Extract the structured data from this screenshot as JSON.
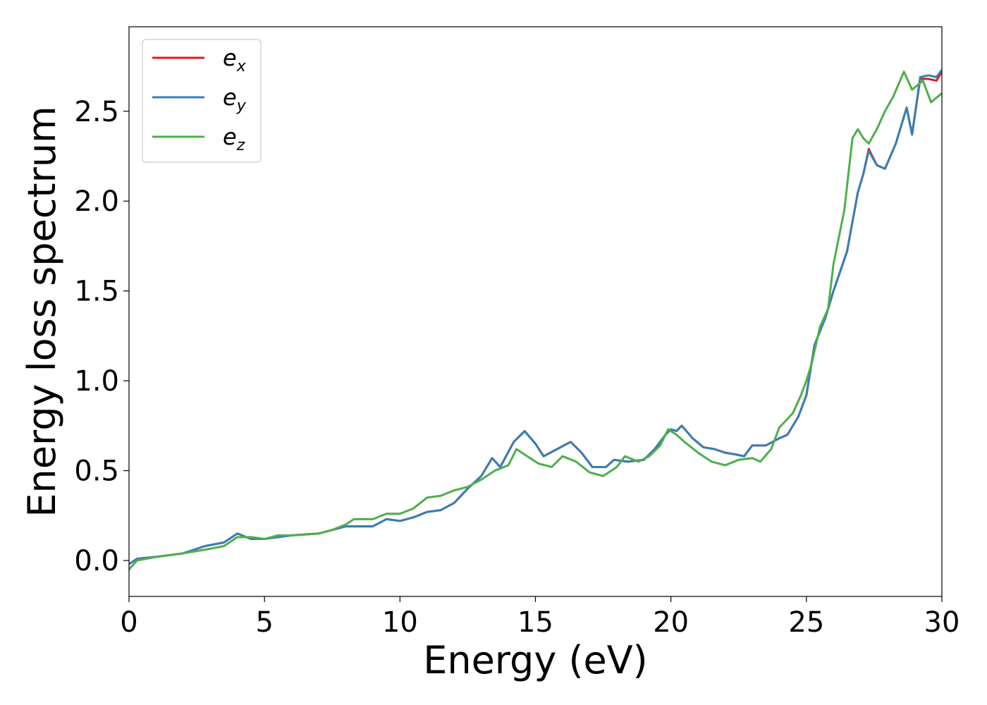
{
  "chart_data": {
    "type": "line",
    "title": "",
    "xlabel": "Energy (eV)",
    "ylabel": "Energy loss spectrum",
    "xlim": [
      0,
      30
    ],
    "ylim": [
      -0.2,
      2.97
    ],
    "xticks": [
      0,
      5,
      10,
      15,
      20,
      25,
      30
    ],
    "yticks": [
      0.0,
      0.5,
      1.0,
      1.5,
      2.0,
      2.5
    ],
    "xtick_labels": [
      "0",
      "5",
      "10",
      "15",
      "20",
      "25",
      "30"
    ],
    "ytick_labels": [
      "0.0",
      "0.5",
      "1.0",
      "1.5",
      "2.0",
      "2.5"
    ],
    "grid": false,
    "legend_position": "top-left",
    "series": [
      {
        "name": "e",
        "subscript": "x",
        "color": "#e41a1c",
        "points": [
          [
            0,
            -0.02
          ],
          [
            0.3,
            0.01
          ],
          [
            1,
            0.02
          ],
          [
            2,
            0.04
          ],
          [
            2.8,
            0.08
          ],
          [
            3.5,
            0.1
          ],
          [
            4,
            0.15
          ],
          [
            4.5,
            0.12
          ],
          [
            5,
            0.12
          ],
          [
            5.5,
            0.13
          ],
          [
            6,
            0.14
          ],
          [
            7,
            0.15
          ],
          [
            7.5,
            0.17
          ],
          [
            8,
            0.19
          ],
          [
            8.5,
            0.19
          ],
          [
            9,
            0.19
          ],
          [
            9.5,
            0.23
          ],
          [
            10,
            0.22
          ],
          [
            10.5,
            0.24
          ],
          [
            11,
            0.27
          ],
          [
            11.5,
            0.28
          ],
          [
            12,
            0.32
          ],
          [
            12.5,
            0.4
          ],
          [
            13,
            0.47
          ],
          [
            13.4,
            0.57
          ],
          [
            13.7,
            0.52
          ],
          [
            14.2,
            0.66
          ],
          [
            14.6,
            0.72
          ],
          [
            15,
            0.65
          ],
          [
            15.3,
            0.58
          ],
          [
            15.8,
            0.62
          ],
          [
            16.3,
            0.66
          ],
          [
            16.7,
            0.6
          ],
          [
            17.1,
            0.52
          ],
          [
            17.6,
            0.52
          ],
          [
            17.9,
            0.56
          ],
          [
            18.4,
            0.55
          ],
          [
            19,
            0.56
          ],
          [
            19.4,
            0.62
          ],
          [
            19.8,
            0.7
          ],
          [
            20,
            0.73
          ],
          [
            20.2,
            0.72
          ],
          [
            20.4,
            0.75
          ],
          [
            20.8,
            0.68
          ],
          [
            21.2,
            0.63
          ],
          [
            21.6,
            0.62
          ],
          [
            22,
            0.6
          ],
          [
            22.4,
            0.59
          ],
          [
            22.7,
            0.58
          ],
          [
            23,
            0.64
          ],
          [
            23.5,
            0.64
          ],
          [
            24,
            0.68
          ],
          [
            24.3,
            0.7
          ],
          [
            24.7,
            0.8
          ],
          [
            25,
            0.92
          ],
          [
            25.3,
            1.2
          ],
          [
            25.7,
            1.35
          ],
          [
            26,
            1.5
          ],
          [
            26.5,
            1.72
          ],
          [
            26.9,
            2.05
          ],
          [
            27.1,
            2.15
          ],
          [
            27.3,
            2.29
          ],
          [
            27.6,
            2.2
          ],
          [
            27.9,
            2.18
          ],
          [
            28.3,
            2.32
          ],
          [
            28.7,
            2.52
          ],
          [
            28.9,
            2.37
          ],
          [
            29.2,
            2.68
          ],
          [
            29.5,
            2.68
          ],
          [
            29.8,
            2.67
          ],
          [
            30,
            2.72
          ]
        ]
      },
      {
        "name": "e",
        "subscript": "y",
        "color": "#377eb8",
        "points": [
          [
            0,
            -0.02
          ],
          [
            0.3,
            0.01
          ],
          [
            1,
            0.02
          ],
          [
            2,
            0.04
          ],
          [
            2.8,
            0.08
          ],
          [
            3.5,
            0.1
          ],
          [
            4,
            0.15
          ],
          [
            4.5,
            0.12
          ],
          [
            5,
            0.12
          ],
          [
            5.5,
            0.13
          ],
          [
            6,
            0.14
          ],
          [
            7,
            0.15
          ],
          [
            7.5,
            0.17
          ],
          [
            8,
            0.19
          ],
          [
            8.5,
            0.19
          ],
          [
            9,
            0.19
          ],
          [
            9.5,
            0.23
          ],
          [
            10,
            0.22
          ],
          [
            10.5,
            0.24
          ],
          [
            11,
            0.27
          ],
          [
            11.5,
            0.28
          ],
          [
            12,
            0.32
          ],
          [
            12.5,
            0.4
          ],
          [
            13,
            0.47
          ],
          [
            13.4,
            0.57
          ],
          [
            13.7,
            0.52
          ],
          [
            14.2,
            0.66
          ],
          [
            14.6,
            0.72
          ],
          [
            15,
            0.65
          ],
          [
            15.3,
            0.58
          ],
          [
            15.8,
            0.62
          ],
          [
            16.3,
            0.66
          ],
          [
            16.7,
            0.6
          ],
          [
            17.1,
            0.52
          ],
          [
            17.6,
            0.52
          ],
          [
            17.9,
            0.56
          ],
          [
            18.4,
            0.55
          ],
          [
            19,
            0.56
          ],
          [
            19.4,
            0.62
          ],
          [
            19.8,
            0.7
          ],
          [
            20,
            0.73
          ],
          [
            20.2,
            0.72
          ],
          [
            20.4,
            0.75
          ],
          [
            20.8,
            0.68
          ],
          [
            21.2,
            0.63
          ],
          [
            21.6,
            0.62
          ],
          [
            22,
            0.6
          ],
          [
            22.4,
            0.59
          ],
          [
            22.7,
            0.58
          ],
          [
            23,
            0.64
          ],
          [
            23.5,
            0.64
          ],
          [
            24,
            0.68
          ],
          [
            24.3,
            0.7
          ],
          [
            24.7,
            0.8
          ],
          [
            25,
            0.92
          ],
          [
            25.3,
            1.2
          ],
          [
            25.7,
            1.35
          ],
          [
            26,
            1.5
          ],
          [
            26.5,
            1.72
          ],
          [
            26.9,
            2.05
          ],
          [
            27.1,
            2.15
          ],
          [
            27.3,
            2.28
          ],
          [
            27.6,
            2.2
          ],
          [
            27.9,
            2.18
          ],
          [
            28.3,
            2.32
          ],
          [
            28.7,
            2.52
          ],
          [
            28.9,
            2.37
          ],
          [
            29.2,
            2.69
          ],
          [
            29.5,
            2.7
          ],
          [
            29.8,
            2.69
          ],
          [
            30,
            2.73
          ]
        ]
      },
      {
        "name": "e",
        "subscript": "z",
        "color": "#4daf4a",
        "points": [
          [
            0,
            -0.05
          ],
          [
            0.3,
            0.0
          ],
          [
            1,
            0.02
          ],
          [
            1.5,
            0.03
          ],
          [
            2,
            0.04
          ],
          [
            2.8,
            0.06
          ],
          [
            3.5,
            0.08
          ],
          [
            4,
            0.13
          ],
          [
            4.5,
            0.13
          ],
          [
            5,
            0.12
          ],
          [
            5.5,
            0.14
          ],
          [
            6,
            0.14
          ],
          [
            7,
            0.15
          ],
          [
            7.5,
            0.17
          ],
          [
            8,
            0.2
          ],
          [
            8.3,
            0.23
          ],
          [
            9,
            0.23
          ],
          [
            9.5,
            0.26
          ],
          [
            10,
            0.26
          ],
          [
            10.5,
            0.29
          ],
          [
            11,
            0.35
          ],
          [
            11.5,
            0.36
          ],
          [
            12,
            0.39
          ],
          [
            12.5,
            0.41
          ],
          [
            13,
            0.45
          ],
          [
            13.5,
            0.5
          ],
          [
            14,
            0.53
          ],
          [
            14.3,
            0.62
          ],
          [
            14.7,
            0.58
          ],
          [
            15.1,
            0.54
          ],
          [
            15.6,
            0.52
          ],
          [
            16,
            0.58
          ],
          [
            16.5,
            0.55
          ],
          [
            17,
            0.49
          ],
          [
            17.5,
            0.47
          ],
          [
            18,
            0.52
          ],
          [
            18.3,
            0.58
          ],
          [
            18.8,
            0.55
          ],
          [
            19.2,
            0.58
          ],
          [
            19.6,
            0.64
          ],
          [
            19.9,
            0.73
          ],
          [
            20.2,
            0.7
          ],
          [
            20.5,
            0.66
          ],
          [
            21,
            0.6
          ],
          [
            21.5,
            0.55
          ],
          [
            22,
            0.53
          ],
          [
            22.5,
            0.56
          ],
          [
            23,
            0.57
          ],
          [
            23.3,
            0.55
          ],
          [
            23.7,
            0.62
          ],
          [
            24,
            0.74
          ],
          [
            24.5,
            0.82
          ],
          [
            24.8,
            0.92
          ],
          [
            25,
            1.0
          ],
          [
            25.2,
            1.1
          ],
          [
            25.5,
            1.3
          ],
          [
            25.8,
            1.4
          ],
          [
            26,
            1.65
          ],
          [
            26.4,
            1.95
          ],
          [
            26.7,
            2.35
          ],
          [
            26.9,
            2.4
          ],
          [
            27.1,
            2.35
          ],
          [
            27.3,
            2.32
          ],
          [
            27.6,
            2.4
          ],
          [
            27.9,
            2.5
          ],
          [
            28.2,
            2.58
          ],
          [
            28.6,
            2.72
          ],
          [
            28.9,
            2.62
          ],
          [
            29.3,
            2.67
          ],
          [
            29.6,
            2.55
          ],
          [
            30,
            2.6
          ]
        ]
      }
    ]
  }
}
